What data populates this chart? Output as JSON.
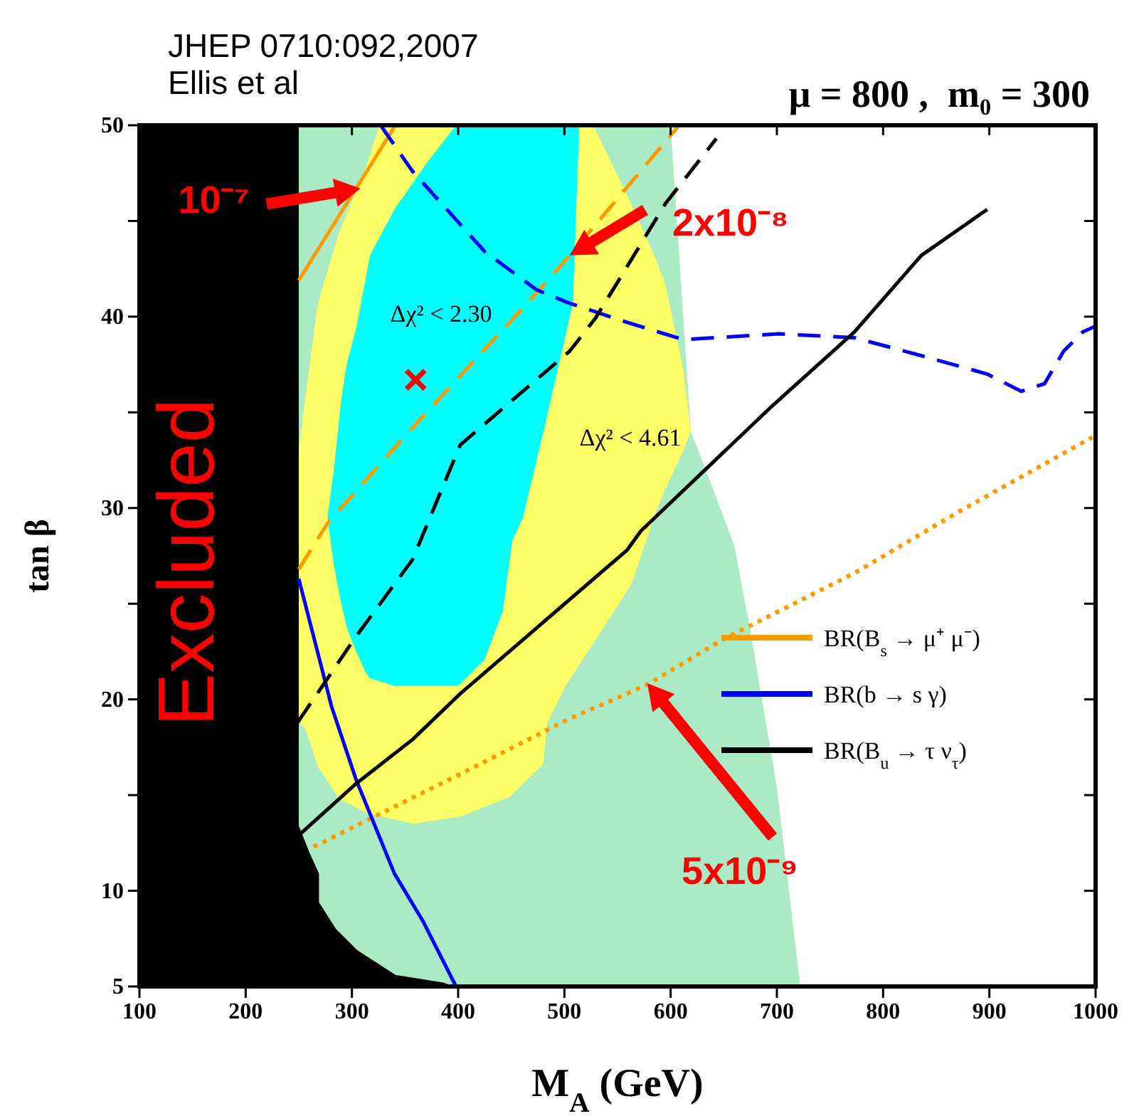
{
  "chart_data": {
    "type": "line",
    "title": "μ = 800 ,  m₀ = 300",
    "xlabel": "M$_{A}$ (GeV)",
    "ylabel": "tan β",
    "xlim": [
      100,
      1000
    ],
    "ylim": [
      5,
      50
    ],
    "xticks": [
      100,
      200,
      300,
      400,
      500,
      600,
      700,
      800,
      900,
      1000
    ],
    "yticks": [
      5,
      10,
      {
        "value": 15,
        "label": null
      },
      20,
      {
        "value": 25,
        "label": null
      },
      30,
      {
        "value": 35,
        "label": null
      },
      40,
      {
        "value": 45,
        "label": null
      },
      50
    ],
    "legend": "right",
    "series": [
      {
        "type": "area",
        "color": "#aaeac4",
        "x": [
          250,
          600,
          619,
          640,
          660,
          675,
          700,
          722,
          250
        ],
        "values": [
          50,
          50,
          34,
          31,
          28,
          23.6,
          15.4,
          5,
          5
        ]
      },
      {
        "type": "area",
        "color": "#ffff66",
        "x": [
          250,
          256,
          268,
          288,
          313,
          326,
          358,
          403,
          448,
          480,
          484,
          502,
          528,
          549,
          563,
          586,
          595,
          612,
          619,
          612,
          595,
          586,
          563,
          549,
          528,
          502,
          484,
          480,
          448,
          403,
          358,
          326,
          313,
          288,
          268,
          256,
          250
        ],
        "values": [
          33,
          35.7,
          40.7,
          44.4,
          47.8,
          50,
          50,
          50,
          50,
          50,
          50,
          50,
          49.9,
          47.5,
          45.9,
          43,
          41.7,
          37.2,
          34,
          33,
          31,
          29.8,
          26,
          24.8,
          23,
          20.8,
          18.8,
          16.6,
          14.9,
          13.9,
          13.5,
          13.9,
          14.1,
          14.8,
          16.5,
          18.5,
          18.8
        ]
      },
      {
        "type": "area",
        "color": "#00ffff",
        "x": [
          277,
          283,
          290,
          295,
          304,
          313,
          317,
          340,
          370,
          398,
          402,
          425,
          442,
          451,
          461,
          482,
          508,
          514,
          508,
          482,
          461,
          451,
          442,
          425,
          402,
          398,
          370,
          340,
          317,
          313,
          304,
          295,
          290,
          283
        ],
        "values": [
          29.5,
          32,
          35.7,
          37.5,
          39.4,
          42,
          43.2,
          45.6,
          48,
          50,
          50,
          50,
          50,
          50,
          50,
          50,
          50,
          50,
          40.7,
          34.4,
          29.5,
          28.3,
          24.6,
          22.1,
          20.8,
          20.7,
          20.7,
          20.7,
          21.1,
          21.4,
          22.5,
          23.8,
          25,
          27
        ]
      },
      {
        "type": "area",
        "color": "#000000",
        "x": [
          100,
          250,
          250,
          260,
          269,
          269,
          285,
          305,
          341,
          386,
          396,
          100
        ],
        "values": [
          50,
          50,
          13.4,
          12,
          10.9,
          9.4,
          8,
          6.9,
          5.6,
          5.2,
          5,
          5
        ]
      },
      {
        "name": "BR(B$_{s}$ → μ⁺ μ⁻)",
        "color": "#ff9900",
        "line_style": "solid",
        "x": [
          250,
          341
        ],
        "values": [
          41.9,
          50
        ]
      },
      {
        "color": "#ff9900",
        "line_style": "dashed",
        "x": [
          250,
          277,
          357,
          465,
          505,
          608
        ],
        "values": [
          26.8,
          29.2,
          34.2,
          40.7,
          43.2,
          50
        ]
      },
      {
        "color": "#ff9900",
        "line_style": "dotted",
        "x": [
          264,
          402,
          505,
          559,
          579,
          648,
          773,
          871,
          997
        ],
        "values": [
          12.3,
          16.1,
          19,
          20.3,
          20.8,
          23.1,
          26.6,
          29.8,
          33.7
        ]
      },
      {
        "name": "BR(b → s γ)",
        "color": "#0000ff",
        "line_style": "solid",
        "x": [
          250,
          281,
          304,
          340,
          367,
          398
        ],
        "values": [
          26.3,
          19.6,
          15.8,
          10.9,
          8.4,
          5
        ]
      },
      {
        "color": "#0000ff",
        "line_style": "dashed",
        "x": [
          327,
          357,
          425,
          474,
          505,
          559,
          612,
          702,
          773,
          840,
          898,
          930,
          952,
          970,
          988,
          1000
        ],
        "values": [
          50,
          47.6,
          43.4,
          41.4,
          40.7,
          39.7,
          38.8,
          39.1,
          38.9,
          37.9,
          37,
          36.1,
          36.5,
          38.2,
          39.2,
          39.5
        ]
      },
      {
        "name": "BR(B$_{u}$ → τ ν$_{τ}$)",
        "color": "#000000",
        "line_style": "solid",
        "x": [
          250,
          304,
          357,
          402,
          559,
          572,
          693,
          773,
          836,
          898
        ],
        "values": [
          12.9,
          15.6,
          17.9,
          20.3,
          27.8,
          28.8,
          35.2,
          39.2,
          43.2,
          45.6
        ]
      },
      {
        "color": "#000000",
        "line_style": "dashed",
        "x": [
          249,
          304,
          357,
          402,
          505,
          529,
          549,
          595,
          643
        ],
        "values": [
          18.8,
          23.3,
          27.3,
          33.3,
          38.2,
          39.9,
          41.7,
          45.9,
          49.3
        ]
      },
      {
        "type": "scatter",
        "color": "#ff0000",
        "marker": "cross",
        "x": [
          360
        ],
        "values": [
          36.7
        ]
      }
    ],
    "annotations": [
      "JHEP 0710:092,2007",
      "Ellis et al",
      "Excluded",
      "Δχ² < 2.30",
      "Δχ² < 4.61",
      {
        "text": "10⁻⁷",
        "x": 308,
        "y": 46.7
      },
      {
        "text": "2x10⁻⁸",
        "x": 505,
        "y": 43.2
      },
      "5x10⁻⁹"
    ]
  }
}
